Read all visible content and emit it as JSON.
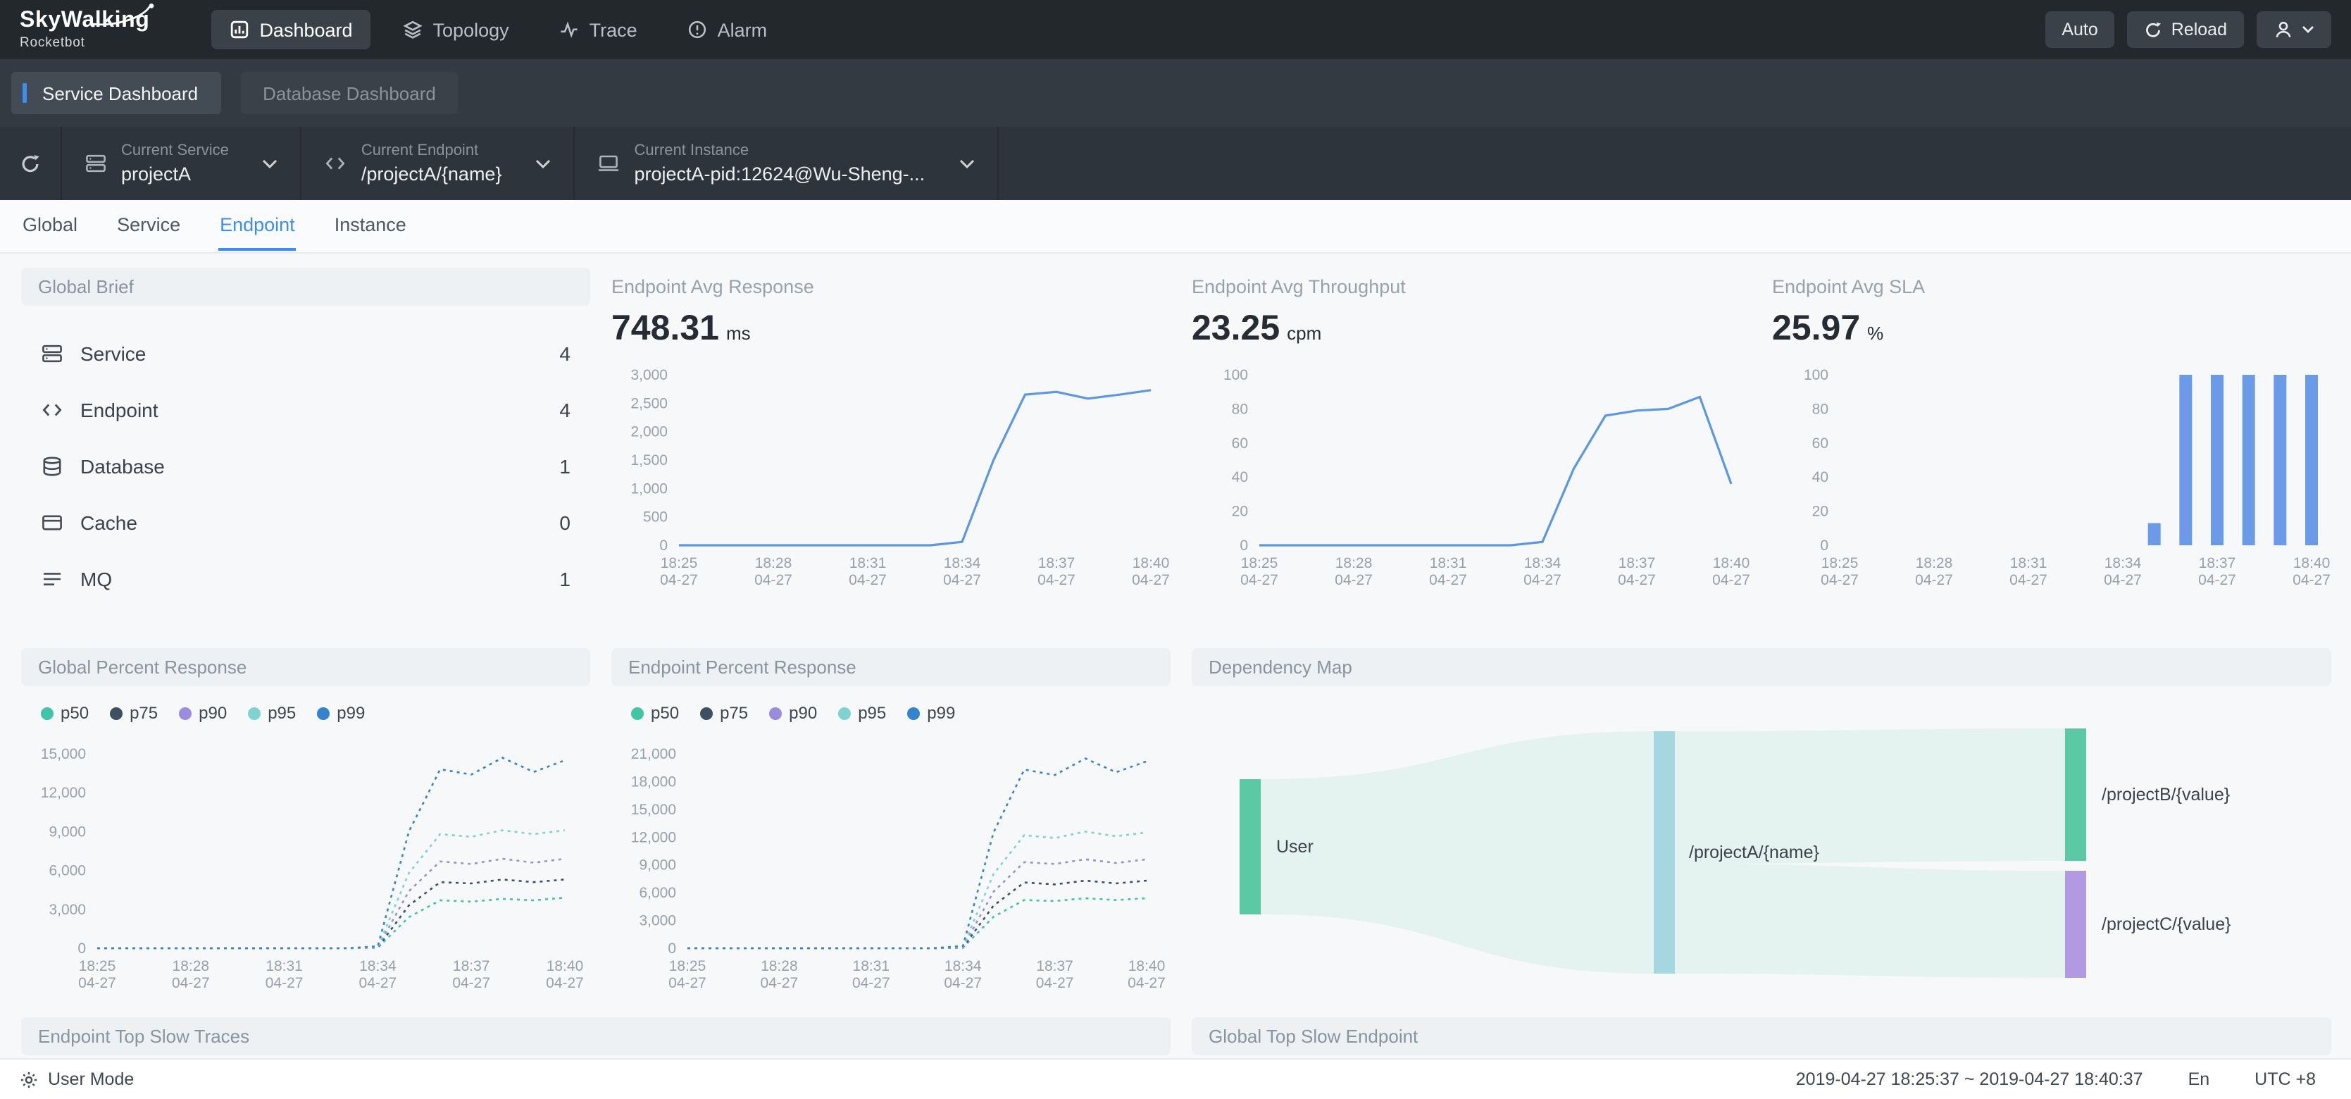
{
  "navbar": {
    "logo_title": "SkyWalking",
    "logo_subtitle": "Rocketbot",
    "items": [
      {
        "label": "Dashboard",
        "active": true
      },
      {
        "label": "Topology",
        "active": false
      },
      {
        "label": "Trace",
        "active": false
      },
      {
        "label": "Alarm",
        "active": false
      }
    ],
    "auto_label": "Auto",
    "reload_label": "Reload"
  },
  "dashboard_tabs": [
    {
      "label": "Service Dashboard",
      "active": true
    },
    {
      "label": "Database Dashboard",
      "active": false
    }
  ],
  "toolbar": {
    "selectors": [
      {
        "caption": "Current Service",
        "value": "projectA"
      },
      {
        "caption": "Current Endpoint",
        "value": "/projectA/{name}"
      },
      {
        "caption": "Current Instance",
        "value": "projectA-pid:12624@Wu-Sheng-..."
      }
    ]
  },
  "view_tabs": [
    {
      "label": "Global",
      "active": false
    },
    {
      "label": "Service",
      "active": false
    },
    {
      "label": "Endpoint",
      "active": true
    },
    {
      "label": "Instance",
      "active": false
    }
  ],
  "global_brief": {
    "title": "Global Brief",
    "rows": [
      {
        "icon": "service-icon",
        "label": "Service",
        "value": "4"
      },
      {
        "icon": "endpoint-icon",
        "label": "Endpoint",
        "value": "4"
      },
      {
        "icon": "database-icon",
        "label": "Database",
        "value": "1"
      },
      {
        "icon": "cache-icon",
        "label": "Cache",
        "value": "0"
      },
      {
        "icon": "mq-icon",
        "label": "MQ",
        "value": "1"
      }
    ]
  },
  "metric_cards": [
    {
      "title": "Endpoint Avg Response",
      "value": "748.31",
      "unit": "ms"
    },
    {
      "title": "Endpoint Avg Throughput",
      "value": "23.25",
      "unit": "cpm"
    },
    {
      "title": "Endpoint Avg SLA",
      "value": "25.97",
      "unit": "%"
    }
  ],
  "percent_cards": [
    {
      "title": "Global Percent Response"
    },
    {
      "title": "Endpoint Percent Response"
    }
  ],
  "legend": [
    "p50",
    "p75",
    "p90",
    "p95",
    "p99"
  ],
  "legend_colors": [
    "#3ec6a5",
    "#3d5063",
    "#9b8ce0",
    "#7ed3cf",
    "#3383cf"
  ],
  "dependency": {
    "title": "Dependency Map",
    "nodes": [
      {
        "label": "User"
      },
      {
        "label": "/projectA/{name}"
      },
      {
        "label": "/projectB/{value}"
      },
      {
        "label": "/projectC/{value}"
      }
    ],
    "colors": {
      "user": "#5bc9a4",
      "mid": "#a5d7e0",
      "top": "#5bc9a4",
      "bottom": "#b29ae2",
      "ribbon": "#d9efe9"
    }
  },
  "bottom_cards": [
    {
      "title": "Endpoint Top Slow Traces"
    },
    {
      "title": "Global Top Slow Endpoint"
    }
  ],
  "footer": {
    "user_mode": "User Mode",
    "time_range": "2019-04-27 18:25:37 ~ 2019-04-27 18:40:37",
    "lang": "En",
    "tz": "UTC +8"
  },
  "chart_data": [
    {
      "id": "endpoint_avg_response",
      "type": "line",
      "title": "Endpoint Avg Response (ms)",
      "ylim": [
        0,
        3000
      ],
      "yticks": [
        0,
        500,
        1000,
        1500,
        2000,
        2500,
        3000
      ],
      "tick_indices": [
        0,
        3,
        6,
        9,
        12,
        15
      ],
      "xticks": [
        {
          "time": "18:25",
          "date": "04-27"
        },
        {
          "time": "18:28",
          "date": "04-27"
        },
        {
          "time": "18:31",
          "date": "04-27"
        },
        {
          "time": "18:34",
          "date": "04-27"
        },
        {
          "time": "18:37",
          "date": "04-27"
        },
        {
          "time": "18:40",
          "date": "04-27"
        }
      ],
      "series": [
        {
          "name": "avg response",
          "color": "#5b97e6",
          "dash": false,
          "values": [
            0,
            0,
            0,
            0,
            0,
            0,
            0,
            0,
            0,
            60,
            1500,
            2650,
            2700,
            2580,
            2650,
            2730
          ]
        }
      ]
    },
    {
      "id": "endpoint_avg_throughput",
      "type": "line",
      "title": "Endpoint Avg Throughput (cpm)",
      "ylim": [
        0,
        100
      ],
      "yticks": [
        0,
        20,
        40,
        60,
        80,
        100
      ],
      "tick_indices": [
        0,
        3,
        6,
        9,
        12,
        15
      ],
      "xticks": [
        {
          "time": "18:25",
          "date": "04-27"
        },
        {
          "time": "18:28",
          "date": "04-27"
        },
        {
          "time": "18:31",
          "date": "04-27"
        },
        {
          "time": "18:34",
          "date": "04-27"
        },
        {
          "time": "18:37",
          "date": "04-27"
        },
        {
          "time": "18:40",
          "date": "04-27"
        }
      ],
      "series": [
        {
          "name": "avg throughput",
          "color": "#5b97e6",
          "dash": false,
          "values": [
            0,
            0,
            0,
            0,
            0,
            0,
            0,
            0,
            0,
            2,
            45,
            76,
            79,
            80,
            87,
            36
          ]
        }
      ]
    },
    {
      "id": "endpoint_avg_sla",
      "type": "bar",
      "title": "Endpoint Avg SLA (%)",
      "color": "#6b9be8",
      "ylim": [
        0,
        100
      ],
      "yticks": [
        0,
        20,
        40,
        60,
        80,
        100
      ],
      "tick_indices": [
        0,
        3,
        6,
        9,
        12,
        15
      ],
      "xticks": [
        {
          "time": "18:25",
          "date": "04-27"
        },
        {
          "time": "18:28",
          "date": "04-27"
        },
        {
          "time": "18:31",
          "date": "04-27"
        },
        {
          "time": "18:34",
          "date": "04-27"
        },
        {
          "time": "18:37",
          "date": "04-27"
        },
        {
          "time": "18:40",
          "date": "04-27"
        }
      ],
      "values": [
        0,
        0,
        0,
        0,
        0,
        0,
        0,
        0,
        0,
        0,
        13,
        100,
        100,
        100,
        100,
        100
      ]
    },
    {
      "id": "global_percent_response",
      "type": "line",
      "title": "Global Percent Response",
      "ylim": [
        0,
        15000
      ],
      "yticks": [
        0,
        3000,
        6000,
        9000,
        12000,
        15000
      ],
      "tick_indices": [
        0,
        3,
        6,
        9,
        12,
        15
      ],
      "xticks": [
        {
          "time": "18:25",
          "date": "04-27"
        },
        {
          "time": "18:28",
          "date": "04-27"
        },
        {
          "time": "18:31",
          "date": "04-27"
        },
        {
          "time": "18:34",
          "date": "04-27"
        },
        {
          "time": "18:37",
          "date": "04-27"
        },
        {
          "time": "18:40",
          "date": "04-27"
        }
      ],
      "series": [
        {
          "name": "p50",
          "color": "#3ec6a5",
          "dash": true,
          "values": [
            0,
            0,
            0,
            0,
            0,
            0,
            0,
            0,
            0,
            40,
            2400,
            3700,
            3600,
            3800,
            3700,
            3900
          ]
        },
        {
          "name": "p75",
          "color": "#3d5063",
          "dash": true,
          "values": [
            0,
            0,
            0,
            0,
            0,
            0,
            0,
            0,
            0,
            60,
            3300,
            5100,
            5000,
            5300,
            5100,
            5300
          ]
        },
        {
          "name": "p90",
          "color": "#9b8ce0",
          "dash": true,
          "values": [
            0,
            0,
            0,
            0,
            0,
            0,
            0,
            0,
            0,
            80,
            4400,
            6700,
            6500,
            6900,
            6600,
            6900
          ]
        },
        {
          "name": "p95",
          "color": "#7ed3cf",
          "dash": true,
          "values": [
            0,
            0,
            0,
            0,
            0,
            0,
            0,
            0,
            0,
            100,
            5800,
            8800,
            8600,
            9100,
            8800,
            9100
          ]
        },
        {
          "name": "p99",
          "color": "#3383cf",
          "dash": true,
          "values": [
            0,
            0,
            0,
            0,
            0,
            0,
            0,
            0,
            0,
            150,
            9000,
            13800,
            13400,
            14700,
            13600,
            14500
          ]
        }
      ]
    },
    {
      "id": "endpoint_percent_response",
      "type": "line",
      "title": "Endpoint Percent Response",
      "ylim": [
        0,
        21000
      ],
      "yticks": [
        0,
        3000,
        6000,
        9000,
        12000,
        15000,
        18000,
        21000
      ],
      "tick_indices": [
        0,
        3,
        6,
        9,
        12,
        15
      ],
      "xticks": [
        {
          "time": "18:25",
          "date": "04-27"
        },
        {
          "time": "18:28",
          "date": "04-27"
        },
        {
          "time": "18:31",
          "date": "04-27"
        },
        {
          "time": "18:34",
          "date": "04-27"
        },
        {
          "time": "18:37",
          "date": "04-27"
        },
        {
          "time": "18:40",
          "date": "04-27"
        }
      ],
      "series": [
        {
          "name": "p50",
          "color": "#3ec6a5",
          "dash": true,
          "values": [
            0,
            0,
            0,
            0,
            0,
            0,
            0,
            0,
            0,
            60,
            3400,
            5200,
            5100,
            5400,
            5200,
            5400
          ]
        },
        {
          "name": "p75",
          "color": "#3d5063",
          "dash": true,
          "values": [
            0,
            0,
            0,
            0,
            0,
            0,
            0,
            0,
            0,
            90,
            4600,
            7100,
            6900,
            7300,
            7000,
            7300
          ]
        },
        {
          "name": "p90",
          "color": "#9b8ce0",
          "dash": true,
          "values": [
            0,
            0,
            0,
            0,
            0,
            0,
            0,
            0,
            0,
            120,
            6100,
            9300,
            9100,
            9600,
            9200,
            9600
          ]
        },
        {
          "name": "p95",
          "color": "#7ed3cf",
          "dash": true,
          "values": [
            0,
            0,
            0,
            0,
            0,
            0,
            0,
            0,
            0,
            160,
            8000,
            12200,
            11900,
            12600,
            12100,
            12500
          ]
        },
        {
          "name": "p99",
          "color": "#3383cf",
          "dash": true,
          "values": [
            0,
            0,
            0,
            0,
            0,
            0,
            0,
            0,
            0,
            250,
            12500,
            19300,
            18700,
            20500,
            19000,
            20200
          ]
        }
      ]
    }
  ]
}
